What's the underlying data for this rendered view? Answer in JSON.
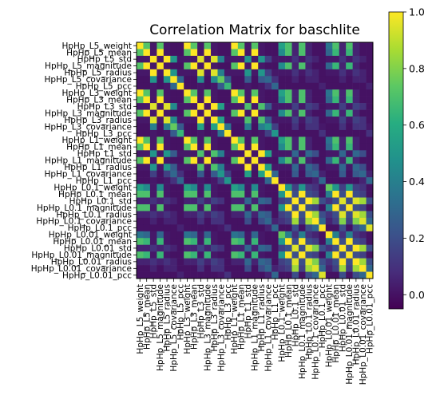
{
  "chart_data": {
    "type": "heatmap",
    "title": "Correlation Matrix for baschlite",
    "labels": [
      "HpHp_L5_weight",
      "HpHp_L5_mean",
      "HpHp_L5_std",
      "HpHp_L5_magnitude",
      "HpHp_L5_radius",
      "HpHp_L5_covariance",
      "HpHp_L5_pcc",
      "HpHp_L3_weight",
      "HpHp_L3_mean",
      "HpHp_L3_std",
      "HpHp_L3_magnitude",
      "HpHp_L3_radius",
      "HpHp_L3_covariance",
      "HpHp_L3_pcc",
      "HpHp_L1_weight",
      "HpHp_L1_mean",
      "HpHp_L1_std",
      "HpHp_L1_magnitude",
      "HpHp_L1_radius",
      "HpHp_L1_covariance",
      "HpHp_L1_pcc",
      "HpHp_L0.1_weight",
      "HpHp_L0.1_mean",
      "HpHp_L0.1_std",
      "HpHp_L0.1_magnitude",
      "HpHp_L0.1_radius",
      "HpHp_L0.1_covariance",
      "HpHp_L0.1_pcc",
      "HpHp_L0.01_weight",
      "HpHp_L0.01_mean",
      "HpHp_L0.01_std",
      "HpHp_L0.01_magnitude",
      "HpHp_L0.01_radius",
      "HpHp_L0.01_covariance",
      "HpHp_L0.01_pcc"
    ],
    "colorbar": {
      "range": [
        -0.05,
        1.0
      ],
      "ticks": [
        0.0,
        0.2,
        0.4,
        0.6,
        0.8,
        1.0
      ],
      "colormap": "viridis"
    },
    "matrix": [
      [
        1.0,
        0.72,
        0.02,
        0.72,
        0.02,
        0.0,
        0.0,
        1.0,
        0.72,
        0.02,
        0.72,
        0.02,
        0.0,
        0.0,
        1.0,
        0.72,
        0.02,
        0.72,
        0.02,
        0.0,
        0.0,
        0.55,
        0.7,
        0.05,
        0.7,
        0.05,
        0.0,
        0.0,
        0.35,
        0.7,
        0.05,
        0.7,
        0.05,
        0.0,
        0.0
      ],
      [
        0.72,
        1.0,
        0.02,
        1.0,
        0.02,
        0.0,
        0.0,
        0.72,
        1.0,
        0.02,
        1.0,
        0.02,
        0.0,
        0.0,
        0.72,
        1.0,
        0.02,
        1.0,
        0.02,
        0.0,
        0.0,
        0.45,
        0.7,
        0.05,
        0.7,
        0.05,
        0.0,
        0.0,
        0.3,
        0.65,
        0.05,
        0.65,
        0.05,
        0.0,
        0.0
      ],
      [
        0.02,
        0.02,
        1.0,
        0.02,
        1.0,
        0.5,
        0.02,
        0.02,
        0.02,
        0.95,
        0.02,
        0.95,
        0.4,
        0.02,
        0.02,
        0.02,
        0.5,
        0.02,
        0.5,
        0.15,
        0.02,
        0.02,
        0.02,
        0.1,
        0.02,
        0.1,
        0.05,
        0.0,
        0.02,
        0.02,
        0.1,
        0.02,
        0.1,
        0.05,
        0.0
      ],
      [
        0.72,
        1.0,
        0.02,
        1.0,
        0.02,
        0.0,
        0.0,
        0.72,
        1.0,
        0.02,
        1.0,
        0.02,
        0.0,
        0.0,
        0.72,
        1.0,
        0.02,
        1.0,
        0.02,
        0.0,
        0.0,
        0.45,
        0.7,
        0.05,
        0.7,
        0.05,
        0.0,
        0.0,
        0.3,
        0.65,
        0.05,
        0.65,
        0.05,
        0.0,
        0.0
      ],
      [
        0.02,
        0.02,
        1.0,
        0.02,
        1.0,
        0.5,
        0.02,
        0.02,
        0.02,
        0.95,
        0.02,
        0.95,
        0.4,
        0.02,
        0.02,
        0.02,
        0.5,
        0.02,
        0.5,
        0.15,
        0.02,
        0.02,
        0.02,
        0.1,
        0.02,
        0.1,
        0.05,
        0.0,
        0.02,
        0.02,
        0.1,
        0.02,
        0.1,
        0.05,
        0.0
      ],
      [
        0.0,
        0.0,
        0.5,
        0.0,
        0.5,
        1.0,
        0.3,
        0.0,
        0.0,
        0.45,
        0.0,
        0.45,
        0.75,
        0.25,
        0.0,
        0.0,
        0.25,
        0.0,
        0.25,
        0.3,
        0.1,
        0.0,
        0.0,
        0.05,
        0.0,
        0.05,
        0.05,
        0.0,
        0.0,
        0.0,
        0.05,
        0.0,
        0.05,
        0.05,
        0.0
      ],
      [
        0.0,
        0.0,
        0.02,
        0.0,
        0.02,
        0.3,
        1.0,
        0.0,
        0.0,
        0.02,
        0.0,
        0.02,
        0.25,
        0.65,
        0.0,
        0.0,
        0.02,
        0.0,
        0.02,
        0.1,
        0.3,
        0.0,
        0.0,
        0.0,
        0.0,
        0.0,
        0.0,
        0.05,
        0.0,
        0.0,
        0.0,
        0.0,
        0.0,
        0.0,
        0.05
      ],
      [
        1.0,
        0.72,
        0.02,
        0.72,
        0.02,
        0.0,
        0.0,
        1.0,
        0.72,
        0.02,
        0.72,
        0.02,
        0.0,
        0.0,
        1.0,
        0.72,
        0.02,
        0.72,
        0.02,
        0.0,
        0.0,
        0.55,
        0.7,
        0.05,
        0.7,
        0.05,
        0.0,
        0.0,
        0.35,
        0.7,
        0.05,
        0.7,
        0.05,
        0.0,
        0.0
      ],
      [
        0.72,
        1.0,
        0.02,
        1.0,
        0.02,
        0.0,
        0.0,
        0.72,
        1.0,
        0.02,
        1.0,
        0.02,
        0.0,
        0.0,
        0.72,
        1.0,
        0.02,
        1.0,
        0.02,
        0.0,
        0.0,
        0.45,
        0.7,
        0.05,
        0.7,
        0.05,
        0.0,
        0.0,
        0.3,
        0.65,
        0.05,
        0.65,
        0.05,
        0.0,
        0.0
      ],
      [
        0.02,
        0.02,
        0.95,
        0.02,
        0.95,
        0.45,
        0.02,
        0.02,
        0.02,
        1.0,
        0.02,
        1.0,
        0.55,
        0.02,
        0.02,
        0.02,
        0.7,
        0.02,
        0.7,
        0.25,
        0.02,
        0.02,
        0.02,
        0.15,
        0.02,
        0.15,
        0.1,
        0.0,
        0.02,
        0.02,
        0.15,
        0.02,
        0.15,
        0.1,
        0.0
      ],
      [
        0.72,
        1.0,
        0.02,
        1.0,
        0.02,
        0.0,
        0.0,
        0.72,
        1.0,
        0.02,
        1.0,
        0.02,
        0.0,
        0.0,
        0.72,
        1.0,
        0.02,
        1.0,
        0.02,
        0.0,
        0.0,
        0.45,
        0.7,
        0.05,
        0.7,
        0.05,
        0.0,
        0.0,
        0.3,
        0.65,
        0.05,
        0.65,
        0.05,
        0.0,
        0.0
      ],
      [
        0.02,
        0.02,
        0.95,
        0.02,
        0.95,
        0.45,
        0.02,
        0.02,
        0.02,
        1.0,
        0.02,
        1.0,
        0.55,
        0.02,
        0.02,
        0.02,
        0.7,
        0.02,
        0.7,
        0.25,
        0.02,
        0.02,
        0.02,
        0.15,
        0.02,
        0.15,
        0.1,
        0.0,
        0.02,
        0.02,
        0.15,
        0.02,
        0.15,
        0.1,
        0.0
      ],
      [
        0.0,
        0.0,
        0.4,
        0.0,
        0.4,
        0.75,
        0.25,
        0.0,
        0.0,
        0.55,
        0.0,
        0.55,
        1.0,
        0.35,
        0.0,
        0.0,
        0.4,
        0.0,
        0.4,
        0.5,
        0.15,
        0.0,
        0.0,
        0.1,
        0.0,
        0.1,
        0.1,
        0.02,
        0.0,
        0.0,
        0.1,
        0.0,
        0.1,
        0.1,
        0.02
      ],
      [
        0.0,
        0.0,
        0.02,
        0.0,
        0.02,
        0.25,
        0.65,
        0.0,
        0.0,
        0.02,
        0.0,
        0.02,
        0.35,
        1.0,
        0.0,
        0.0,
        0.02,
        0.0,
        0.02,
        0.15,
        0.5,
        0.0,
        0.0,
        0.0,
        0.0,
        0.0,
        0.0,
        0.1,
        0.0,
        0.0,
        0.0,
        0.0,
        0.0,
        0.0,
        0.1
      ],
      [
        1.0,
        0.72,
        0.02,
        0.72,
        0.02,
        0.0,
        0.0,
        1.0,
        0.72,
        0.02,
        0.72,
        0.02,
        0.0,
        0.0,
        1.0,
        0.72,
        0.02,
        0.72,
        0.02,
        0.0,
        0.0,
        0.55,
        0.7,
        0.05,
        0.7,
        0.05,
        0.0,
        0.0,
        0.35,
        0.7,
        0.05,
        0.7,
        0.05,
        0.0,
        0.0
      ],
      [
        0.72,
        1.0,
        0.02,
        1.0,
        0.02,
        0.0,
        0.0,
        0.72,
        1.0,
        0.02,
        1.0,
        0.02,
        0.0,
        0.0,
        0.72,
        1.0,
        0.02,
        1.0,
        0.02,
        0.0,
        0.0,
        0.45,
        0.7,
        0.05,
        0.7,
        0.05,
        0.0,
        0.0,
        0.3,
        0.65,
        0.05,
        0.65,
        0.05,
        0.0,
        0.0
      ],
      [
        0.02,
        0.02,
        0.5,
        0.02,
        0.5,
        0.25,
        0.02,
        0.02,
        0.02,
        0.7,
        0.02,
        0.7,
        0.4,
        0.02,
        0.02,
        0.02,
        1.0,
        0.02,
        1.0,
        0.55,
        0.02,
        0.02,
        0.02,
        0.3,
        0.02,
        0.3,
        0.2,
        0.0,
        0.02,
        0.02,
        0.3,
        0.02,
        0.3,
        0.2,
        0.0
      ],
      [
        0.72,
        1.0,
        0.02,
        1.0,
        0.02,
        0.0,
        0.0,
        0.72,
        1.0,
        0.02,
        1.0,
        0.02,
        0.0,
        0.0,
        0.72,
        1.0,
        0.02,
        1.0,
        0.02,
        0.0,
        0.0,
        0.45,
        0.7,
        0.05,
        0.7,
        0.05,
        0.0,
        0.0,
        0.3,
        0.65,
        0.05,
        0.65,
        0.05,
        0.0,
        0.0
      ],
      [
        0.02,
        0.02,
        0.5,
        0.02,
        0.5,
        0.25,
        0.02,
        0.02,
        0.02,
        0.7,
        0.02,
        0.7,
        0.4,
        0.02,
        0.02,
        0.02,
        1.0,
        0.02,
        1.0,
        0.55,
        0.02,
        0.02,
        0.02,
        0.3,
        0.02,
        0.3,
        0.2,
        0.0,
        0.02,
        0.02,
        0.3,
        0.02,
        0.3,
        0.2,
        0.0
      ],
      [
        0.0,
        0.0,
        0.15,
        0.0,
        0.15,
        0.3,
        0.1,
        0.0,
        0.0,
        0.25,
        0.0,
        0.25,
        0.5,
        0.15,
        0.0,
        0.0,
        0.55,
        0.0,
        0.55,
        1.0,
        0.3,
        0.0,
        0.0,
        0.25,
        0.0,
        0.25,
        0.3,
        0.05,
        0.0,
        0.0,
        0.25,
        0.0,
        0.25,
        0.3,
        0.05
      ],
      [
        0.0,
        0.0,
        0.02,
        0.0,
        0.02,
        0.1,
        0.3,
        0.0,
        0.0,
        0.02,
        0.0,
        0.02,
        0.15,
        0.5,
        0.0,
        0.0,
        0.02,
        0.0,
        0.02,
        0.3,
        1.0,
        0.0,
        0.0,
        0.0,
        0.0,
        0.0,
        0.05,
        0.3,
        0.0,
        0.0,
        0.0,
        0.0,
        0.0,
        0.05,
        0.3
      ],
      [
        0.55,
        0.45,
        0.02,
        0.45,
        0.02,
        0.0,
        0.0,
        0.55,
        0.45,
        0.02,
        0.45,
        0.02,
        0.0,
        0.0,
        0.55,
        0.45,
        0.02,
        0.45,
        0.02,
        0.0,
        0.0,
        1.0,
        0.5,
        0.15,
        0.5,
        0.15,
        0.1,
        0.0,
        0.75,
        0.5,
        0.15,
        0.5,
        0.15,
        0.1,
        0.0
      ],
      [
        0.7,
        0.7,
        0.02,
        0.7,
        0.02,
        0.0,
        0.0,
        0.7,
        0.7,
        0.02,
        0.7,
        0.02,
        0.0,
        0.0,
        0.7,
        0.7,
        0.02,
        0.7,
        0.02,
        0.0,
        0.0,
        0.5,
        1.0,
        0.2,
        1.0,
        0.2,
        0.15,
        0.0,
        0.4,
        1.0,
        0.2,
        1.0,
        0.2,
        0.15,
        0.0
      ],
      [
        0.05,
        0.05,
        0.1,
        0.05,
        0.1,
        0.05,
        0.0,
        0.05,
        0.05,
        0.15,
        0.05,
        0.15,
        0.1,
        0.0,
        0.05,
        0.05,
        0.3,
        0.05,
        0.3,
        0.25,
        0.0,
        0.15,
        0.2,
        1.0,
        0.2,
        1.0,
        0.85,
        0.2,
        0.1,
        0.2,
        0.95,
        0.2,
        0.95,
        0.85,
        0.2
      ],
      [
        0.7,
        0.7,
        0.02,
        0.7,
        0.02,
        0.0,
        0.0,
        0.7,
        0.7,
        0.02,
        0.7,
        0.02,
        0.0,
        0.0,
        0.7,
        0.7,
        0.02,
        0.7,
        0.02,
        0.0,
        0.0,
        0.5,
        1.0,
        0.2,
        1.0,
        0.2,
        0.15,
        0.0,
        0.4,
        1.0,
        0.2,
        1.0,
        0.2,
        0.15,
        0.0
      ],
      [
        0.05,
        0.05,
        0.1,
        0.05,
        0.1,
        0.05,
        0.0,
        0.05,
        0.05,
        0.15,
        0.05,
        0.15,
        0.1,
        0.0,
        0.05,
        0.05,
        0.3,
        0.05,
        0.3,
        0.25,
        0.0,
        0.15,
        0.2,
        1.0,
        0.2,
        1.0,
        0.85,
        0.2,
        0.1,
        0.2,
        0.95,
        0.2,
        0.95,
        0.85,
        0.2
      ],
      [
        0.0,
        0.0,
        0.05,
        0.0,
        0.05,
        0.05,
        0.0,
        0.0,
        0.0,
        0.1,
        0.0,
        0.1,
        0.1,
        0.0,
        0.0,
        0.0,
        0.2,
        0.0,
        0.2,
        0.3,
        0.05,
        0.1,
        0.15,
        0.85,
        0.15,
        0.85,
        1.0,
        0.3,
        0.05,
        0.15,
        0.8,
        0.15,
        0.8,
        0.95,
        0.3
      ],
      [
        0.0,
        0.0,
        0.0,
        0.0,
        0.0,
        0.0,
        0.05,
        0.0,
        0.0,
        0.0,
        0.0,
        0.0,
        0.02,
        0.1,
        0.0,
        0.0,
        0.0,
        0.0,
        0.0,
        0.05,
        0.3,
        0.0,
        0.0,
        0.2,
        0.0,
        0.2,
        0.3,
        1.0,
        0.0,
        0.0,
        0.2,
        0.0,
        0.2,
        0.3,
        0.95
      ],
      [
        0.35,
        0.3,
        0.02,
        0.3,
        0.02,
        0.0,
        0.0,
        0.35,
        0.3,
        0.02,
        0.3,
        0.02,
        0.0,
        0.0,
        0.35,
        0.3,
        0.02,
        0.3,
        0.02,
        0.0,
        0.0,
        0.75,
        0.4,
        0.1,
        0.4,
        0.1,
        0.05,
        0.0,
        1.0,
        0.4,
        0.1,
        0.4,
        0.1,
        0.05,
        0.0
      ],
      [
        0.7,
        0.65,
        0.02,
        0.65,
        0.02,
        0.0,
        0.0,
        0.7,
        0.65,
        0.02,
        0.65,
        0.02,
        0.0,
        0.0,
        0.7,
        0.65,
        0.02,
        0.65,
        0.02,
        0.0,
        0.0,
        0.5,
        1.0,
        0.2,
        1.0,
        0.2,
        0.15,
        0.0,
        0.4,
        1.0,
        0.2,
        1.0,
        0.2,
        0.15,
        0.0
      ],
      [
        0.05,
        0.05,
        0.1,
        0.05,
        0.1,
        0.05,
        0.0,
        0.05,
        0.05,
        0.15,
        0.05,
        0.15,
        0.1,
        0.0,
        0.05,
        0.05,
        0.3,
        0.05,
        0.3,
        0.25,
        0.0,
        0.15,
        0.2,
        0.95,
        0.2,
        0.95,
        0.8,
        0.2,
        0.1,
        0.2,
        1.0,
        0.2,
        1.0,
        0.85,
        0.2
      ],
      [
        0.7,
        0.65,
        0.02,
        0.65,
        0.02,
        0.0,
        0.0,
        0.7,
        0.65,
        0.02,
        0.65,
        0.02,
        0.0,
        0.0,
        0.7,
        0.65,
        0.02,
        0.65,
        0.02,
        0.0,
        0.0,
        0.5,
        1.0,
        0.2,
        1.0,
        0.2,
        0.15,
        0.0,
        0.4,
        1.0,
        0.2,
        1.0,
        0.2,
        0.15,
        0.0
      ],
      [
        0.05,
        0.05,
        0.1,
        0.05,
        0.1,
        0.05,
        0.0,
        0.05,
        0.05,
        0.15,
        0.05,
        0.15,
        0.1,
        0.0,
        0.05,
        0.05,
        0.3,
        0.05,
        0.3,
        0.25,
        0.0,
        0.15,
        0.2,
        0.95,
        0.2,
        0.95,
        0.8,
        0.2,
        0.1,
        0.2,
        1.0,
        0.2,
        1.0,
        0.85,
        0.2
      ],
      [
        0.0,
        0.0,
        0.05,
        0.0,
        0.05,
        0.05,
        0.0,
        0.0,
        0.0,
        0.1,
        0.0,
        0.1,
        0.1,
        0.0,
        0.0,
        0.0,
        0.2,
        0.0,
        0.2,
        0.3,
        0.05,
        0.1,
        0.15,
        0.85,
        0.15,
        0.85,
        0.95,
        0.3,
        0.05,
        0.15,
        0.85,
        0.15,
        0.85,
        1.0,
        0.3
      ],
      [
        0.0,
        0.0,
        0.0,
        0.0,
        0.0,
        0.0,
        0.05,
        0.0,
        0.0,
        0.0,
        0.0,
        0.0,
        0.02,
        0.1,
        0.0,
        0.0,
        0.0,
        0.0,
        0.0,
        0.05,
        0.3,
        0.0,
        0.0,
        0.2,
        0.0,
        0.2,
        0.3,
        0.95,
        0.0,
        0.0,
        0.2,
        0.0,
        0.2,
        0.3,
        1.0
      ]
    ]
  }
}
